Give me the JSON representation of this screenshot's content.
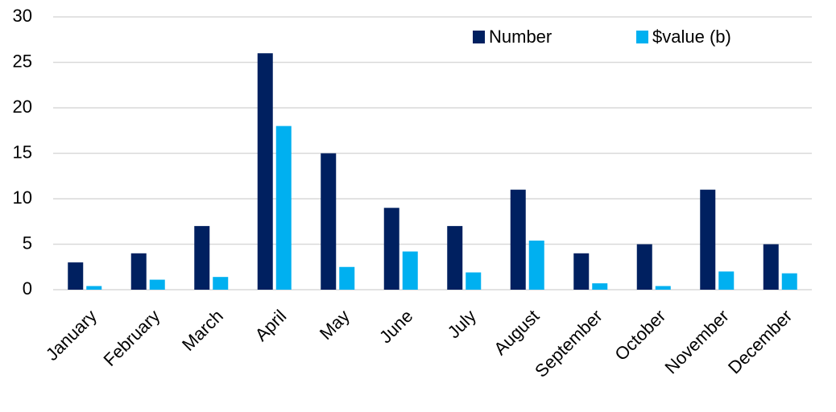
{
  "chart_data": {
    "type": "bar",
    "categories": [
      "January",
      "February",
      "March",
      "April",
      "May",
      "June",
      "July",
      "August",
      "September",
      "October",
      "November",
      "December"
    ],
    "series": [
      {
        "name": "Number",
        "color": "#002060",
        "values": [
          3,
          4,
          7,
          26,
          15,
          9,
          7,
          11,
          4,
          5,
          11,
          5
        ]
      },
      {
        "name": "$value (b)",
        "color": "#00b0f0",
        "values": [
          0.4,
          1.1,
          1.4,
          18,
          2.5,
          4.2,
          1.9,
          5.4,
          0.7,
          0.4,
          2.0,
          1.8
        ]
      }
    ],
    "ylim": [
      0,
      30
    ],
    "yticks": [
      0,
      5,
      10,
      15,
      20,
      25,
      30
    ],
    "grid": true,
    "legend": "top-right"
  }
}
